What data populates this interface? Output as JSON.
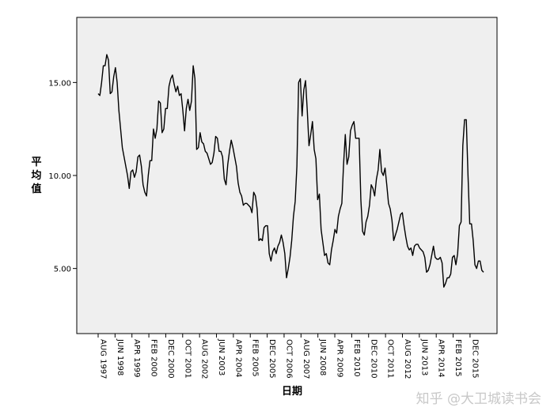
{
  "chart_data": {
    "type": "line",
    "title": "",
    "xlabel": "日期",
    "ylabel": "平均值",
    "ylim": [
      1.5,
      18.5
    ],
    "yticks": [
      5,
      10,
      15
    ],
    "ytick_labels": [
      "5.00",
      "10.00",
      "15.00"
    ],
    "xtick_labels": [
      "AUG 1997",
      "JUN 1998",
      "APR 1999",
      "FEB 2000",
      "DEC 2000",
      "OCT 2001",
      "AUG 2002",
      "JUN 2003",
      "APR 2004",
      "FEB 2005",
      "DEC 2005",
      "OCT 2006",
      "AUG 2007",
      "JUN 2008",
      "APR 2009",
      "FEB 2010",
      "DEC 2010",
      "OCT 2011",
      "AUG 2012",
      "JUN 2013",
      "APR 2014",
      "FEB 2015",
      "DEC 2015"
    ],
    "x_start": "1997-08",
    "x_end": "2016-08",
    "grid": false,
    "background": "#efefef",
    "line_color": "#000000",
    "series": [
      {
        "values": [
          14.4,
          14.3,
          15.0,
          15.9,
          15.9,
          16.5,
          16.2,
          14.4,
          14.5,
          15.3,
          15.8,
          15.0,
          13.5,
          12.5,
          11.5,
          11.0,
          10.5,
          10.0,
          9.3,
          10.2,
          10.3,
          9.9,
          10.2,
          11.0,
          11.1,
          10.5,
          9.5,
          9.1,
          8.9,
          10.0,
          10.8,
          10.8,
          12.5,
          12.0,
          12.5,
          14.0,
          13.9,
          12.3,
          12.5,
          13.6,
          13.6,
          14.8,
          15.2,
          15.4,
          14.9,
          14.5,
          14.8,
          14.3,
          14.4,
          13.5,
          12.4,
          13.6,
          14.1,
          13.5,
          14.0,
          15.9,
          15.2,
          11.4,
          11.5,
          12.3,
          11.8,
          11.7,
          11.3,
          11.2,
          10.9,
          10.6,
          10.7,
          11.2,
          12.1,
          12.0,
          11.3,
          11.3,
          11.0,
          9.8,
          9.5,
          10.6,
          11.3,
          11.9,
          11.5,
          11.0,
          10.5,
          9.6,
          9.1,
          8.9,
          8.4,
          8.5,
          8.5,
          8.4,
          8.3,
          8.0,
          9.1,
          8.9,
          8.2,
          6.5,
          6.6,
          6.5,
          7.2,
          7.3,
          7.3,
          5.8,
          5.4,
          5.9,
          6.1,
          5.8,
          6.2,
          6.4,
          6.8,
          6.4,
          5.8,
          4.5,
          5.0,
          5.6,
          6.5,
          7.8,
          8.6,
          10.5,
          15.0,
          15.2,
          13.2,
          14.6,
          15.1,
          13.5,
          11.6,
          12.2,
          12.9,
          11.4,
          10.9,
          8.7,
          9.0,
          7.1,
          6.4,
          5.7,
          5.8,
          5.3,
          5.2,
          6.0,
          6.5,
          7.1,
          6.9,
          7.8,
          8.2,
          8.5,
          10.6,
          12.2,
          10.6,
          11.0,
          12.4,
          12.7,
          12.9,
          12.0,
          12.0,
          12.0,
          8.7,
          7.0,
          6.8,
          7.5,
          7.8,
          8.4,
          9.5,
          9.3,
          8.9,
          9.8,
          10.3,
          11.4,
          10.2,
          10.0,
          10.4,
          9.5,
          8.5,
          8.2,
          7.6,
          6.5,
          6.8,
          7.1,
          7.5,
          7.9,
          8.0,
          7.3,
          6.7,
          6.2,
          6.0,
          6.1,
          5.7,
          6.2,
          6.3,
          6.3,
          6.1,
          6.0,
          5.9,
          5.6,
          4.8,
          4.9,
          5.2,
          5.7,
          6.2,
          5.6,
          5.5,
          5.5,
          5.6,
          5.3,
          4.0,
          4.2,
          4.5,
          4.5,
          4.7,
          5.6,
          5.7,
          5.2,
          5.8,
          7.3,
          7.5,
          11.6,
          13.0,
          13.0,
          10.0,
          7.4,
          7.4,
          6.5,
          5.2,
          5.0,
          5.4,
          5.4,
          4.9,
          4.8
        ]
      }
    ]
  },
  "watermark": "知乎 @大卫城读书会"
}
